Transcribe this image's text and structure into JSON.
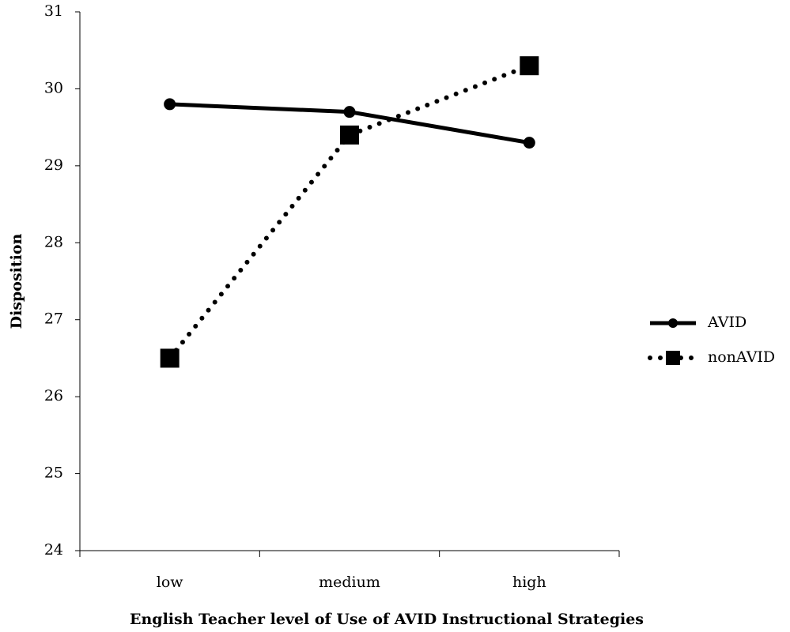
{
  "chart_data": {
    "type": "line",
    "x_label": "English Teacher level of Use of AVID Instructional Strategies",
    "y_label": "Disposition",
    "categories": [
      "low",
      "medium",
      "high"
    ],
    "series": [
      {
        "name": "AVID",
        "color": "#000000",
        "line_style": "solid",
        "marker": "circle",
        "values": [
          29.8,
          29.7,
          29.3
        ]
      },
      {
        "name": "nonAVID",
        "color": "#000000",
        "line_style": "dotted",
        "marker": "square",
        "values": [
          26.5,
          29.4,
          30.3
        ]
      }
    ],
    "ylim": [
      24,
      31
    ],
    "yticks": [
      24,
      25,
      26,
      27,
      28,
      29,
      30,
      31
    ],
    "grid": false,
    "legend": "right"
  }
}
